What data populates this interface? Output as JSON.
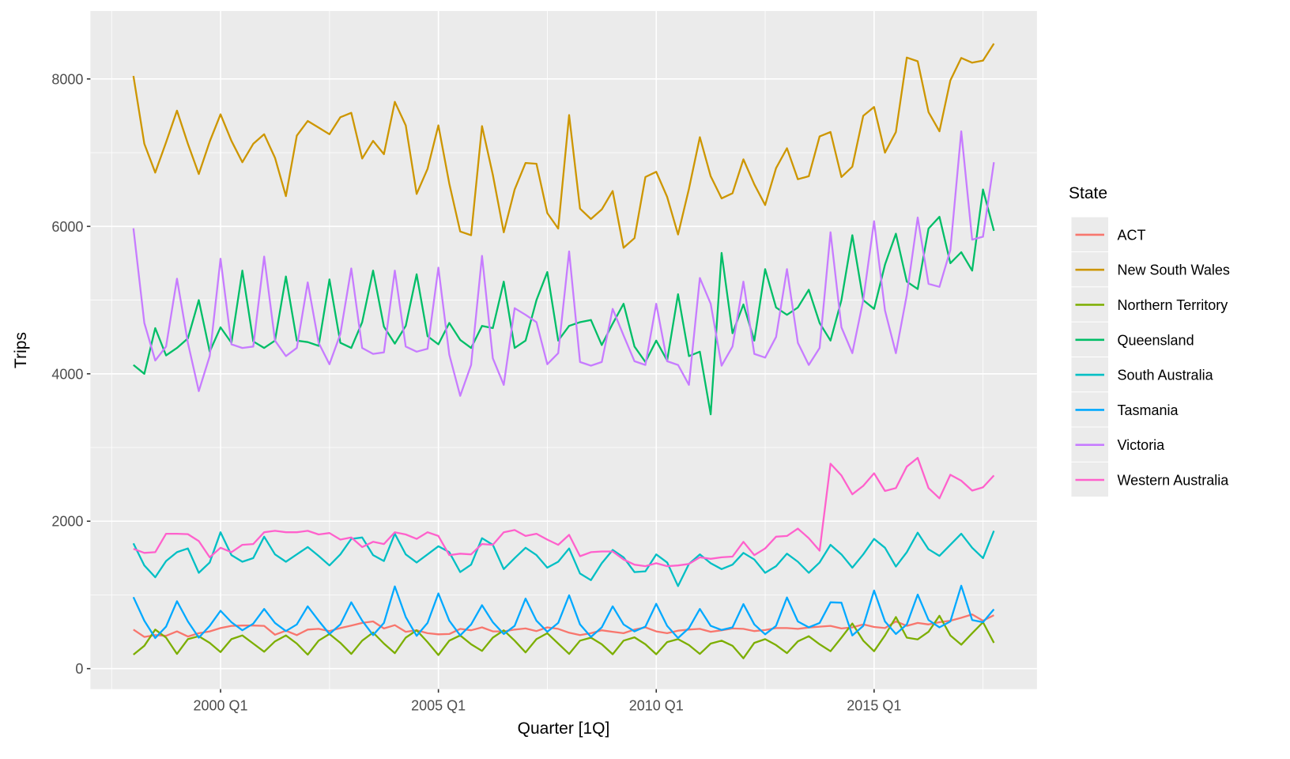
{
  "chart_data": {
    "type": "line",
    "title": "",
    "xlabel": "Quarter [1Q]",
    "ylabel": "Trips",
    "x": [
      "1998 Q1",
      "1998 Q2",
      "1998 Q3",
      "1998 Q4",
      "1999 Q1",
      "1999 Q2",
      "1999 Q3",
      "1999 Q4",
      "2000 Q1",
      "2000 Q2",
      "2000 Q3",
      "2000 Q4",
      "2001 Q1",
      "2001 Q2",
      "2001 Q3",
      "2001 Q4",
      "2002 Q1",
      "2002 Q2",
      "2002 Q3",
      "2002 Q4",
      "2003 Q1",
      "2003 Q2",
      "2003 Q3",
      "2003 Q4",
      "2004 Q1",
      "2004 Q2",
      "2004 Q3",
      "2004 Q4",
      "2005 Q1",
      "2005 Q2",
      "2005 Q3",
      "2005 Q4",
      "2006 Q1",
      "2006 Q2",
      "2006 Q3",
      "2006 Q4",
      "2007 Q1",
      "2007 Q2",
      "2007 Q3",
      "2007 Q4",
      "2008 Q1",
      "2008 Q2",
      "2008 Q3",
      "2008 Q4",
      "2009 Q1",
      "2009 Q2",
      "2009 Q3",
      "2009 Q4",
      "2010 Q1",
      "2010 Q2",
      "2010 Q3",
      "2010 Q4",
      "2011 Q1",
      "2011 Q2",
      "2011 Q3",
      "2011 Q4",
      "2012 Q1",
      "2012 Q2",
      "2012 Q3",
      "2012 Q4",
      "2013 Q1",
      "2013 Q2",
      "2013 Q3",
      "2013 Q4",
      "2014 Q1",
      "2014 Q2",
      "2014 Q3",
      "2014 Q4",
      "2015 Q1",
      "2015 Q2",
      "2015 Q3",
      "2015 Q4",
      "2016 Q1",
      "2016 Q2",
      "2016 Q3",
      "2016 Q4",
      "2017 Q1",
      "2017 Q2",
      "2017 Q3",
      "2017 Q4"
    ],
    "x_axis": {
      "label": "Quarter [1Q]",
      "tick_labels": [
        "2000 Q1",
        "2005 Q1",
        "2010 Q1",
        "2015 Q1"
      ]
    },
    "y_axis": {
      "label": "Trips",
      "tick_labels": [
        "0",
        "2000",
        "4000",
        "6000",
        "8000"
      ],
      "tick_values": [
        0,
        2000,
        4000,
        6000,
        8000
      ],
      "minor_values": [
        1000,
        3000,
        5000,
        7000
      ],
      "ylim": [
        -278,
        8922
      ]
    },
    "legend": {
      "title": "State",
      "position": "right"
    },
    "series": [
      {
        "name": "ACT",
        "color": "#F8766D",
        "values": [
          530,
          430,
          455,
          445,
          505,
          435,
          480,
          505,
          550,
          580,
          585,
          585,
          580,
          460,
          515,
          455,
          530,
          540,
          510,
          550,
          585,
          620,
          640,
          545,
          590,
          500,
          520,
          480,
          465,
          470,
          540,
          520,
          560,
          505,
          505,
          530,
          545,
          510,
          560,
          540,
          487,
          455,
          480,
          520,
          500,
          480,
          530,
          560,
          505,
          480,
          515,
          530,
          540,
          500,
          520,
          545,
          540,
          510,
          523,
          550,
          550,
          540,
          558,
          570,
          580,
          545,
          560,
          600,
          565,
          550,
          640,
          580,
          620,
          600,
          630,
          650,
          690,
          736,
          650,
          725
        ]
      },
      {
        "name": "New South Wales",
        "color": "#CD9600",
        "values": [
          8040,
          7120,
          6730,
          7140,
          7570,
          7120,
          6710,
          7150,
          7520,
          7160,
          6870,
          7120,
          7250,
          6930,
          6410,
          7230,
          7430,
          7340,
          7250,
          7480,
          7540,
          6920,
          7160,
          6980,
          7690,
          7370,
          6440,
          6780,
          7370,
          6580,
          5930,
          5880,
          7360,
          6700,
          5920,
          6500,
          6860,
          6850,
          6180,
          5970,
          7510,
          6240,
          6100,
          6230,
          6480,
          5710,
          5840,
          6670,
          6740,
          6400,
          5890,
          6510,
          7210,
          6680,
          6380,
          6450,
          6910,
          6570,
          6290,
          6790,
          7060,
          6640,
          6680,
          7220,
          7280,
          6670,
          6810,
          7500,
          7620,
          7000,
          7280,
          8290,
          8240,
          7550,
          7290,
          7980,
          8285,
          8220,
          8250,
          8480
        ]
      },
      {
        "name": "Northern Territory",
        "color": "#7CAE00",
        "values": [
          190,
          310,
          530,
          420,
          200,
          400,
          440,
          350,
          225,
          400,
          450,
          340,
          230,
          370,
          450,
          340,
          190,
          380,
          470,
          350,
          200,
          380,
          490,
          340,
          210,
          420,
          520,
          360,
          185,
          380,
          450,
          330,
          240,
          420,
          520,
          380,
          220,
          400,
          480,
          340,
          200,
          380,
          420,
          330,
          195,
          380,
          425,
          330,
          195,
          360,
          400,
          320,
          200,
          340,
          380,
          310,
          140,
          350,
          400,
          320,
          210,
          370,
          440,
          330,
          236,
          420,
          612,
          380,
          236,
          450,
          700,
          420,
          397,
          500,
          718,
          450,
          325,
          480,
          630,
          350
        ]
      },
      {
        "name": "Queensland",
        "color": "#00BE67",
        "values": [
          4120,
          4000,
          4620,
          4250,
          4350,
          4480,
          5000,
          4300,
          4630,
          4420,
          5400,
          4440,
          4350,
          4450,
          5320,
          4450,
          4430,
          4380,
          5280,
          4420,
          4350,
          4700,
          5400,
          4640,
          4410,
          4650,
          5350,
          4510,
          4400,
          4690,
          4460,
          4350,
          4650,
          4620,
          5250,
          4350,
          4450,
          5000,
          5380,
          4450,
          4650,
          4700,
          4730,
          4390,
          4680,
          4950,
          4370,
          4160,
          4450,
          4180,
          5080,
          4240,
          4300,
          3450,
          5640,
          4550,
          4940,
          4450,
          5420,
          4900,
          4800,
          4900,
          5140,
          4690,
          4450,
          5000,
          5880,
          5000,
          4880,
          5480,
          5900,
          5250,
          5150,
          5970,
          6130,
          5500,
          5650,
          5400,
          6500,
          5940
        ]
      },
      {
        "name": "South Australia",
        "color": "#00BFC4",
        "values": [
          1700,
          1400,
          1240,
          1460,
          1580,
          1630,
          1300,
          1440,
          1850,
          1540,
          1450,
          1500,
          1790,
          1550,
          1450,
          1550,
          1650,
          1530,
          1400,
          1550,
          1760,
          1780,
          1540,
          1460,
          1830,
          1550,
          1440,
          1550,
          1660,
          1580,
          1310,
          1410,
          1770,
          1680,
          1350,
          1500,
          1640,
          1540,
          1370,
          1450,
          1630,
          1290,
          1200,
          1430,
          1610,
          1510,
          1310,
          1320,
          1550,
          1440,
          1120,
          1420,
          1550,
          1430,
          1350,
          1410,
          1570,
          1480,
          1300,
          1390,
          1560,
          1450,
          1300,
          1440,
          1680,
          1550,
          1370,
          1550,
          1760,
          1640,
          1385,
          1580,
          1845,
          1620,
          1530,
          1680,
          1830,
          1640,
          1500,
          1870
        ]
      },
      {
        "name": "Tasmania",
        "color": "#00A9FF",
        "values": [
          970,
          650,
          415,
          570,
          915,
          640,
          420,
          580,
          785,
          630,
          520,
          610,
          810,
          620,
          510,
          600,
          845,
          650,
          470,
          600,
          900,
          650,
          455,
          620,
          1115,
          700,
          445,
          620,
          1020,
          650,
          450,
          600,
          860,
          630,
          470,
          580,
          950,
          650,
          500,
          620,
          995,
          600,
          430,
          560,
          845,
          600,
          505,
          570,
          880,
          580,
          415,
          550,
          810,
          580,
          525,
          560,
          875,
          600,
          465,
          580,
          965,
          640,
          560,
          620,
          900,
          895,
          450,
          580,
          1060,
          640,
          470,
          600,
          1005,
          660,
          560,
          640,
          1125,
          660,
          630,
          805
        ]
      },
      {
        "name": "Victoria",
        "color": "#C77CFF",
        "values": [
          5975,
          4690,
          4180,
          4370,
          5290,
          4420,
          3765,
          4240,
          5560,
          4400,
          4350,
          4370,
          5590,
          4450,
          4240,
          4350,
          5240,
          4420,
          4130,
          4540,
          5430,
          4350,
          4270,
          4290,
          5400,
          4370,
          4300,
          4340,
          5440,
          4260,
          3700,
          4120,
          5600,
          4210,
          3850,
          4890,
          4800,
          4700,
          4130,
          4280,
          5660,
          4160,
          4110,
          4160,
          4880,
          4520,
          4170,
          4120,
          4950,
          4170,
          4120,
          3850,
          5300,
          4950,
          4110,
          4370,
          5250,
          4270,
          4220,
          4500,
          5420,
          4420,
          4120,
          4350,
          5920,
          4630,
          4280,
          5000,
          6070,
          4860,
          4280,
          5070,
          6120,
          5220,
          5180,
          5680,
          7290,
          5820,
          5860,
          6870
        ]
      },
      {
        "name": "Western Australia",
        "color": "#FF61CC",
        "values": [
          1625,
          1570,
          1580,
          1830,
          1830,
          1825,
          1730,
          1510,
          1640,
          1580,
          1680,
          1690,
          1850,
          1870,
          1850,
          1850,
          1870,
          1820,
          1840,
          1750,
          1780,
          1650,
          1720,
          1690,
          1850,
          1820,
          1760,
          1850,
          1800,
          1540,
          1560,
          1550,
          1690,
          1680,
          1850,
          1880,
          1800,
          1830,
          1750,
          1680,
          1815,
          1525,
          1580,
          1590,
          1590,
          1480,
          1410,
          1390,
          1430,
          1390,
          1400,
          1420,
          1510,
          1490,
          1510,
          1520,
          1720,
          1540,
          1630,
          1790,
          1800,
          1900,
          1770,
          1600,
          2780,
          2620,
          2365,
          2480,
          2650,
          2410,
          2450,
          2740,
          2860,
          2450,
          2310,
          2630,
          2550,
          2415,
          2460,
          2620
        ]
      }
    ],
    "style": {
      "panel_background": "#EBEBEB",
      "grid_color": "#FFFFFF",
      "tick_text_color": "#4D4D4D",
      "title_text_color": "#000000",
      "tick_mark_color": "#333333"
    }
  }
}
